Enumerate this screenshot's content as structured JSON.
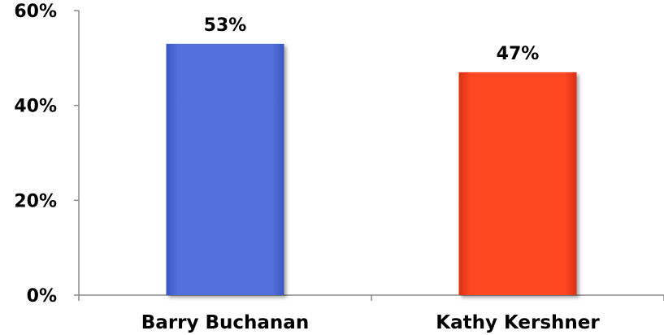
{
  "chart_data": {
    "type": "bar",
    "title": "",
    "xlabel": "",
    "ylabel": "",
    "categories": [
      "Barry Buchanan",
      "Kathy Kershner"
    ],
    "values": [
      53,
      47
    ],
    "data_labels": [
      "53%",
      "47%"
    ],
    "colors": [
      "#4f6bd6",
      "#ff4422"
    ],
    "ylim": [
      0,
      60
    ],
    "yticks": [
      0,
      20,
      40,
      60
    ],
    "ytick_labels": [
      "0%",
      "20%",
      "40%",
      "60%"
    ],
    "grid": false,
    "legend": "none"
  }
}
